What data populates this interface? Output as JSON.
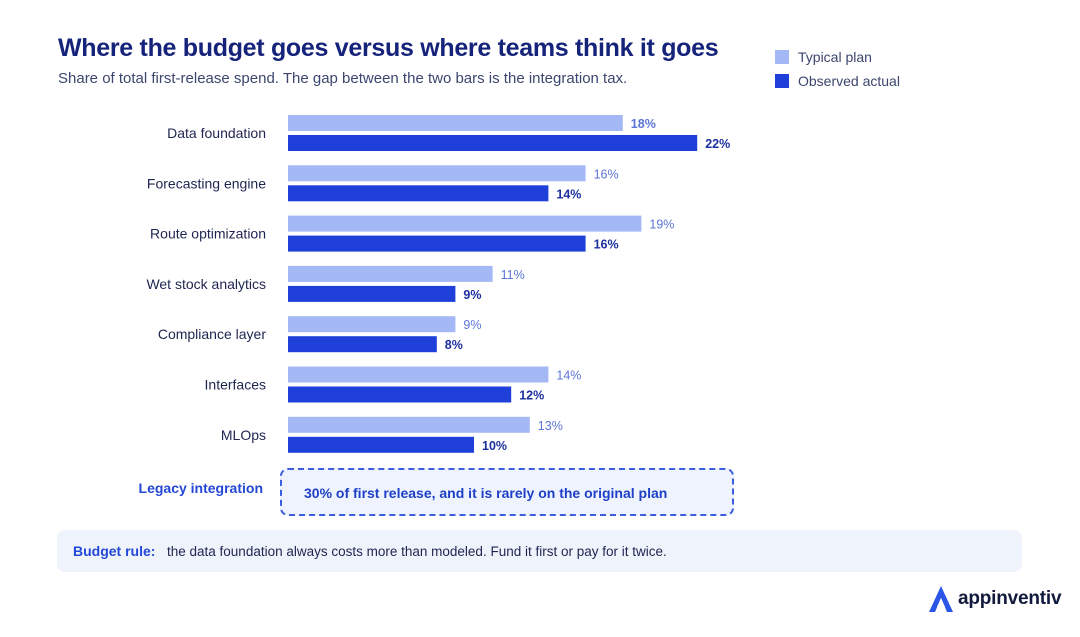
{
  "title": "Where the budget goes versus where teams think it goes",
  "subtitle": "Share of total first-release spend. The gap between the two bars is the integration tax.",
  "legend": [
    {
      "label": "Typical plan",
      "color": "#a3b8f5"
    },
    {
      "label": "Observed actual",
      "color": "#1f3fd9"
    }
  ],
  "chart_data": {
    "type": "bar",
    "orientation": "horizontal",
    "categories": [
      "Data foundation",
      "Forecasting engine",
      "Route optimization",
      "Wet stock analytics",
      "Compliance layer",
      "Interfaces",
      "MLOps"
    ],
    "series": [
      {
        "name": "Typical plan",
        "values": [
          18,
          16,
          19,
          11,
          9,
          14,
          13
        ],
        "labels": [
          "18%",
          "16%",
          "19%",
          "11%",
          "9%",
          "14%",
          "13%"
        ],
        "color": "#a3b8f5",
        "label_color": "#5b74d6"
      },
      {
        "name": "Observed actual",
        "values": [
          22,
          14,
          16,
          9,
          8,
          12,
          10
        ],
        "labels": [
          "22%",
          "14%",
          "16%",
          "9%",
          "8%",
          "12%",
          "10%"
        ],
        "color": "#1f3fd9",
        "label_color": "#1c2f9e"
      }
    ],
    "highlight_label_indices": [
      [
        0
      ],
      [
        0,
        1,
        2,
        3,
        4,
        5,
        6
      ]
    ],
    "unit": "%",
    "xlim": [
      0,
      25
    ],
    "grid": false,
    "legend_position": "top-right"
  },
  "callout": {
    "label": "Legacy integration",
    "text": "30% of first release, and it is rarely on the original plan"
  },
  "budget_rule": {
    "label": "Budget rule:",
    "text": "the data foundation always costs more than modeled. Fund it first or pay for it twice."
  },
  "brand": {
    "name": "appinventiv",
    "icon": "appinventiv-logo-icon"
  }
}
